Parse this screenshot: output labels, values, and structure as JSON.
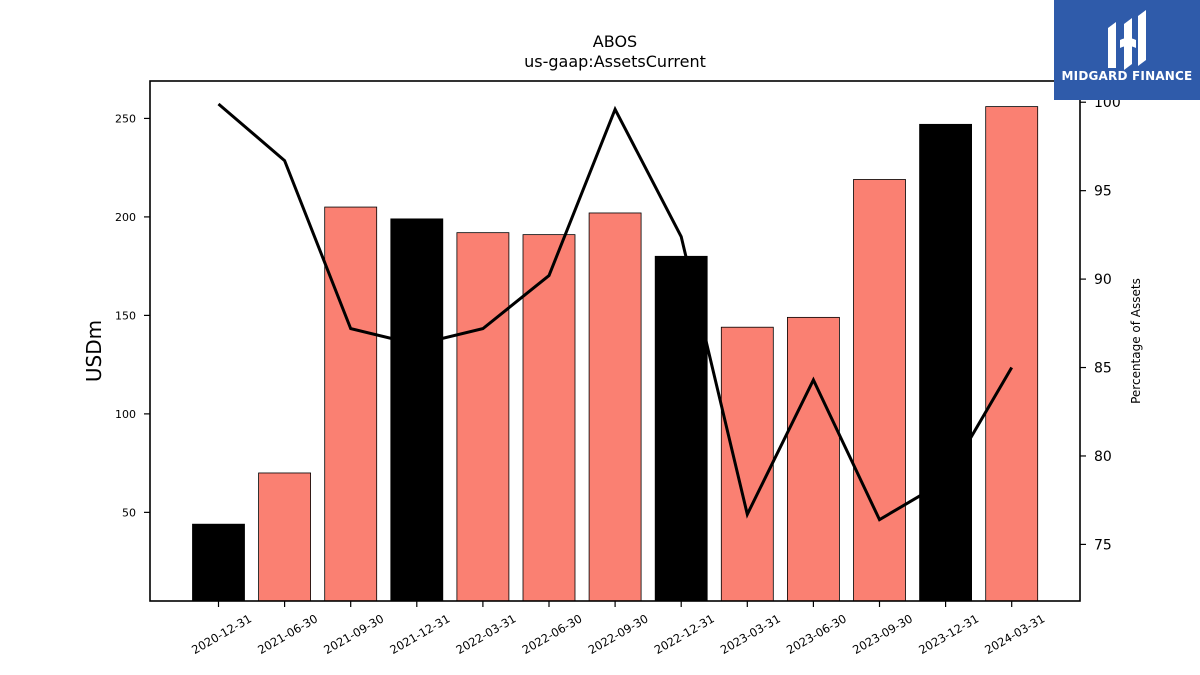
{
  "chart_data": {
    "type": "bar",
    "title": "ABOS",
    "subtitle": "us-gaap:AssetsCurrent",
    "ylabel": "USDm",
    "y2label": "Percentage of Assets",
    "categories": [
      "2020-12-31",
      "2021-06-30",
      "2021-09-30",
      "2021-12-31",
      "2022-03-31",
      "2022-06-30",
      "2022-09-30",
      "2022-12-31",
      "2023-03-31",
      "2023-06-30",
      "2023-09-30",
      "2023-12-31",
      "2024-03-31"
    ],
    "series": [
      {
        "type": "bar",
        "values": [
          44,
          70,
          205,
          199,
          192,
          191,
          202,
          180,
          144,
          149,
          219,
          247,
          256
        ],
        "colors": [
          "#000000",
          "#fa8072",
          "#fa8072",
          "#000000",
          "#fa8072",
          "#fa8072",
          "#fa8072",
          "#000000",
          "#fa8072",
          "#fa8072",
          "#fa8072",
          "#000000",
          "#fa8072"
        ]
      },
      {
        "type": "line",
        "axis": "right",
        "color": "#000000",
        "values": [
          99.9,
          96.7,
          87.2,
          86.3,
          87.2,
          90.2,
          99.6,
          92.4,
          76.7,
          84.3,
          76.4,
          78.6,
          85.0
        ]
      }
    ],
    "ylim": [
      5,
      269
    ],
    "y2lim": [
      71.8,
      101.2
    ],
    "yticks": [
      50,
      100,
      150,
      200,
      250
    ],
    "y2ticks": [
      75,
      80,
      85,
      90,
      95,
      100
    ],
    "grid": false
  },
  "logo": {
    "text": "MIDGARD FINANCE"
  }
}
